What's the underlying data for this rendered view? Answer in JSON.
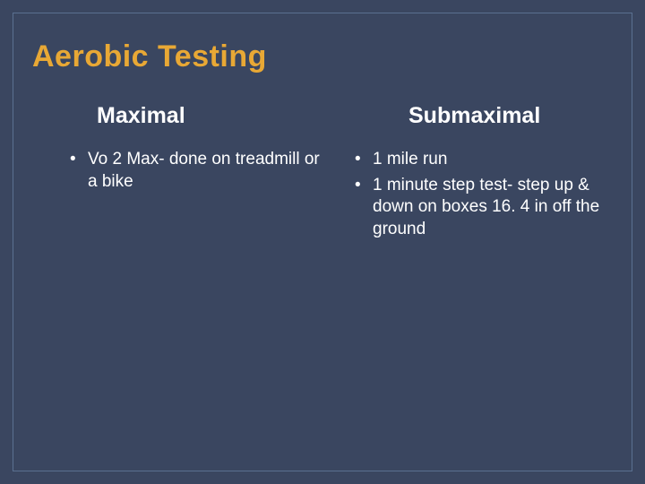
{
  "slide": {
    "title": "Aerobic Testing",
    "background_color": "#3a4660",
    "border_color": "#5a7090",
    "title_color": "#e8a835",
    "text_color": "#ffffff",
    "title_fontsize": 34,
    "header_fontsize": 25,
    "body_fontsize": 19,
    "columns": {
      "left": {
        "header": "Maximal",
        "bullets": [
          "Vo 2 Max- done on treadmill or a bike"
        ]
      },
      "right": {
        "header": "Submaximal",
        "bullets": [
          "1 mile run",
          "1 minute step test- step up & down on boxes 16. 4 in off the ground"
        ]
      }
    }
  }
}
